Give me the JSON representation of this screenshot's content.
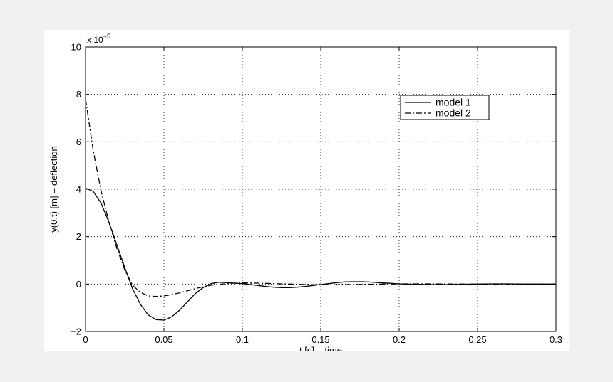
{
  "chart_data": {
    "type": "line",
    "title": "",
    "xlabel": "t [s] – time",
    "ylabel": "y(0,t) [m] – deflection",
    "y_multiplier_label": "x 10",
    "y_multiplier_exponent": "−5",
    "xlim": [
      0,
      0.3
    ],
    "ylim": [
      -2,
      10
    ],
    "x_ticks": [
      0,
      0.05,
      0.1,
      0.15,
      0.2,
      0.25,
      0.3
    ],
    "x_tick_labels": [
      "0",
      "0.05",
      "0.1",
      "0.15",
      "0.2",
      "0.25",
      "0.3"
    ],
    "y_ticks": [
      -2,
      0,
      2,
      4,
      6,
      8,
      10
    ],
    "y_tick_labels": [
      "−2",
      "0",
      "2",
      "4",
      "6",
      "8",
      "10"
    ],
    "grid": true,
    "grid_style": "dotted",
    "legend_position": "top-right",
    "series": [
      {
        "name": "model 1",
        "line_style": "solid",
        "color": "#000000",
        "x": [
          0,
          0.005,
          0.01,
          0.015,
          0.02,
          0.025,
          0.03,
          0.035,
          0.04,
          0.045,
          0.05,
          0.055,
          0.06,
          0.065,
          0.07,
          0.075,
          0.08,
          0.085,
          0.09,
          0.095,
          0.1,
          0.105,
          0.11,
          0.115,
          0.12,
          0.125,
          0.13,
          0.135,
          0.14,
          0.145,
          0.15,
          0.155,
          0.16,
          0.165,
          0.17,
          0.175,
          0.18,
          0.185,
          0.19,
          0.195,
          0.2,
          0.21,
          0.22,
          0.23,
          0.24,
          0.25,
          0.26,
          0.27,
          0.28,
          0.29,
          0.3
        ],
        "y": [
          4.05,
          3.9,
          3.4,
          2.6,
          1.65,
          0.7,
          -0.2,
          -0.85,
          -1.3,
          -1.5,
          -1.52,
          -1.38,
          -1.1,
          -0.75,
          -0.4,
          -0.15,
          0.02,
          0.08,
          0.06,
          0.04,
          0.02,
          -0.02,
          -0.06,
          -0.1,
          -0.13,
          -0.15,
          -0.15,
          -0.13,
          -0.1,
          -0.06,
          -0.02,
          0.02,
          0.06,
          0.09,
          0.1,
          0.1,
          0.09,
          0.07,
          0.05,
          0.03,
          0.01,
          -0.01,
          -0.02,
          -0.02,
          -0.01,
          0.0,
          0.01,
          0.01,
          0.0,
          0.0,
          0.0
        ]
      },
      {
        "name": "model 2",
        "line_style": "dash-dot",
        "color": "#000000",
        "x": [
          0,
          0.005,
          0.01,
          0.015,
          0.02,
          0.025,
          0.03,
          0.035,
          0.04,
          0.045,
          0.05,
          0.055,
          0.06,
          0.065,
          0.07,
          0.075,
          0.08,
          0.085,
          0.09,
          0.095,
          0.1,
          0.11,
          0.12,
          0.13,
          0.14,
          0.15,
          0.16,
          0.17,
          0.18,
          0.19,
          0.2,
          0.22,
          0.24,
          0.26,
          0.28,
          0.3
        ],
        "y": [
          7.8,
          5.6,
          3.9,
          2.6,
          1.5,
          0.6,
          -0.05,
          -0.35,
          -0.5,
          -0.52,
          -0.5,
          -0.44,
          -0.37,
          -0.28,
          -0.19,
          -0.11,
          -0.05,
          -0.01,
          0.02,
          0.04,
          0.05,
          0.04,
          0.02,
          0.0,
          -0.02,
          -0.03,
          -0.03,
          -0.02,
          -0.01,
          0.0,
          0.01,
          0.01,
          0.0,
          0.0,
          0.0,
          0.0
        ]
      }
    ]
  }
}
